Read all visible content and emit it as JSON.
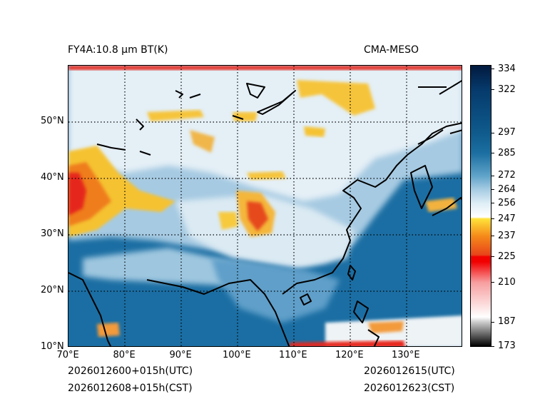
{
  "title_left": "FY4A:10.8 µm BT(K)",
  "title_right": "CMA-MESO",
  "footer": {
    "init_utc": "2026012600+015h(UTC)",
    "init_cst": "2026012608+015h(CST)",
    "valid_utc": "2026012615(UTC)",
    "valid_cst": "2026012623(CST)"
  },
  "map": {
    "lon_range": [
      70,
      140
    ],
    "lat_range": [
      10,
      60
    ],
    "lon_ticks": [
      {
        "value": 70,
        "label": "70°E"
      },
      {
        "value": 80,
        "label": "80°E"
      },
      {
        "value": 90,
        "label": "90°E"
      },
      {
        "value": 100,
        "label": "100°E"
      },
      {
        "value": 110,
        "label": "110°E"
      },
      {
        "value": 120,
        "label": "120°E"
      },
      {
        "value": 130,
        "label": "130°E"
      }
    ],
    "lat_ticks": [
      {
        "value": 10,
        "label": "10°N"
      },
      {
        "value": 20,
        "label": "20°N"
      },
      {
        "value": 30,
        "label": "30°N"
      },
      {
        "value": 40,
        "label": "40°N"
      },
      {
        "value": 50,
        "label": "50°N"
      }
    ],
    "colors": {
      "ocean": "#1f6fa6",
      "land_warm": "#6ba7cf",
      "land_cool": "#bcd7ea",
      "cloud_white": "#eef4f8",
      "cold_top_yellow": "#f5c230",
      "cold_top_orange": "#f08a1c",
      "cold_top_red": "#e8261c"
    }
  },
  "colorbar": {
    "min": 173,
    "max": 336,
    "ticks": [
      334,
      322,
      297,
      285,
      272,
      264,
      256,
      247,
      237,
      225,
      210,
      187,
      173
    ],
    "stops": [
      {
        "value": 173,
        "color": "#000000"
      },
      {
        "value": 187,
        "color": "#cccccc"
      },
      {
        "value": 190,
        "color": "#ffffff"
      },
      {
        "value": 210,
        "color": "#f79ea0"
      },
      {
        "value": 222,
        "color": "#f20000"
      },
      {
        "value": 225,
        "color": "#f20000"
      },
      {
        "value": 226,
        "color": "#e8441a"
      },
      {
        "value": 237,
        "color": "#f58a1a"
      },
      {
        "value": 247,
        "color": "#ffe23a"
      },
      {
        "value": 248,
        "color": "#ffffff"
      },
      {
        "value": 256,
        "color": "#dfeef6"
      },
      {
        "value": 264,
        "color": "#a7cce3"
      },
      {
        "value": 272,
        "color": "#5fa3c9"
      },
      {
        "value": 285,
        "color": "#1c6fa2"
      },
      {
        "value": 297,
        "color": "#0f5a8c"
      },
      {
        "value": 322,
        "color": "#063a6c"
      },
      {
        "value": 336,
        "color": "#021a3f"
      }
    ]
  }
}
